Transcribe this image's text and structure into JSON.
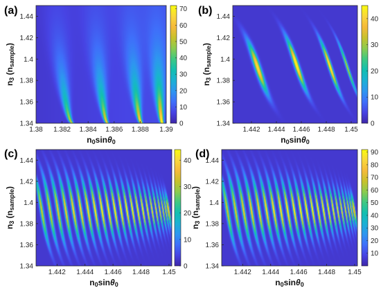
{
  "figure": {
    "colormap": [
      "#3e26a8",
      "#4743e3",
      "#3f6ffa",
      "#2e96f0",
      "#1bb1d4",
      "#13bfb0",
      "#3ec883",
      "#8bcb4f",
      "#c7c12b",
      "#f5ba3a",
      "#f9d73c",
      "#f9fb0e"
    ]
  },
  "chart_data": [
    {
      "panel": "(a)",
      "type": "heatmap",
      "xlabel": "n0sinθ0",
      "ylabel": "n3 (nsample)",
      "xlim": [
        1.38,
        1.39
      ],
      "ylim": [
        1.34,
        1.45
      ],
      "xticks": [
        "1.38",
        "1.382",
        "1.384",
        "1.386",
        "1.388",
        "1.39"
      ],
      "yticks": [
        "1.34",
        "1.36",
        "1.38",
        "1.4",
        "1.42",
        "1.44"
      ],
      "colorbar": {
        "min": 0,
        "max": 72,
        "ticks": [
          "0",
          "10",
          "20",
          "30",
          "40",
          "50",
          "60",
          "70"
        ]
      },
      "resonances": [
        {
          "x_bottom": 1.3828,
          "x_top": 1.3815,
          "peak": 52
        },
        {
          "x_bottom": 1.3855,
          "x_top": 1.3845,
          "peak": 58
        },
        {
          "x_bottom": 1.3881,
          "x_top": 1.3872,
          "peak": 64
        },
        {
          "x_bottom": 1.3897,
          "x_top": 1.3892,
          "peak": 72
        }
      ]
    },
    {
      "panel": "(b)",
      "type": "heatmap",
      "xlabel": "n0sinθ0",
      "ylabel": "n3 (nsample)",
      "xlim": [
        1.4405,
        1.4505
      ],
      "ylim": [
        1.34,
        1.45
      ],
      "xticks": [
        "1.442",
        "1.444",
        "1.446",
        "1.448",
        "1.45"
      ],
      "yticks": [
        "1.34",
        "1.36",
        "1.38",
        "1.4",
        "1.42",
        "1.44"
      ],
      "colorbar": {
        "min": 0,
        "max": 45,
        "ticks": [
          "0",
          "10",
          "20",
          "30",
          "40"
        ]
      },
      "resonances": [
        {
          "x_center": 1.4425,
          "y_center": 1.392,
          "peak": 40
        },
        {
          "x_center": 1.4456,
          "y_center": 1.395,
          "peak": 44
        },
        {
          "x_center": 1.4483,
          "y_center": 1.393,
          "peak": 42
        },
        {
          "x_center": 1.4497,
          "y_center": 1.392,
          "peak": 30
        }
      ]
    },
    {
      "panel": "(c)",
      "type": "heatmap",
      "xlabel": "n0sinθ0",
      "ylabel": "n3 (nsample)",
      "xlim": [
        1.4405,
        1.4502
      ],
      "ylim": [
        1.34,
        1.45
      ],
      "xticks": [
        "1.442",
        "1.444",
        "1.446",
        "1.448",
        "1.45"
      ],
      "yticks": [
        "1.34",
        "1.36",
        "1.38",
        "1.4",
        "1.42",
        "1.44"
      ],
      "colorbar": {
        "min": 0,
        "max": 44,
        "ticks": [
          "0",
          "10",
          "20",
          "30",
          "40"
        ]
      },
      "fringe_count": 24,
      "peak": 42
    },
    {
      "panel": "(d)",
      "type": "heatmap",
      "xlabel": "n0sinθ0",
      "ylabel": "n3 (nsample)",
      "xlim": [
        1.4405,
        1.4502
      ],
      "ylim": [
        1.34,
        1.45
      ],
      "xticks": [
        "1.442",
        "1.444",
        "1.446",
        "1.448",
        "1.45"
      ],
      "yticks": [
        "1.34",
        "1.36",
        "1.38",
        "1.4",
        "1.42",
        "1.44"
      ],
      "colorbar": {
        "min": 0,
        "max": 92,
        "ticks": [
          "10",
          "20",
          "30",
          "40",
          "50",
          "60",
          "70",
          "80",
          "90"
        ]
      },
      "fringe_count": 24,
      "peak": 88
    }
  ]
}
